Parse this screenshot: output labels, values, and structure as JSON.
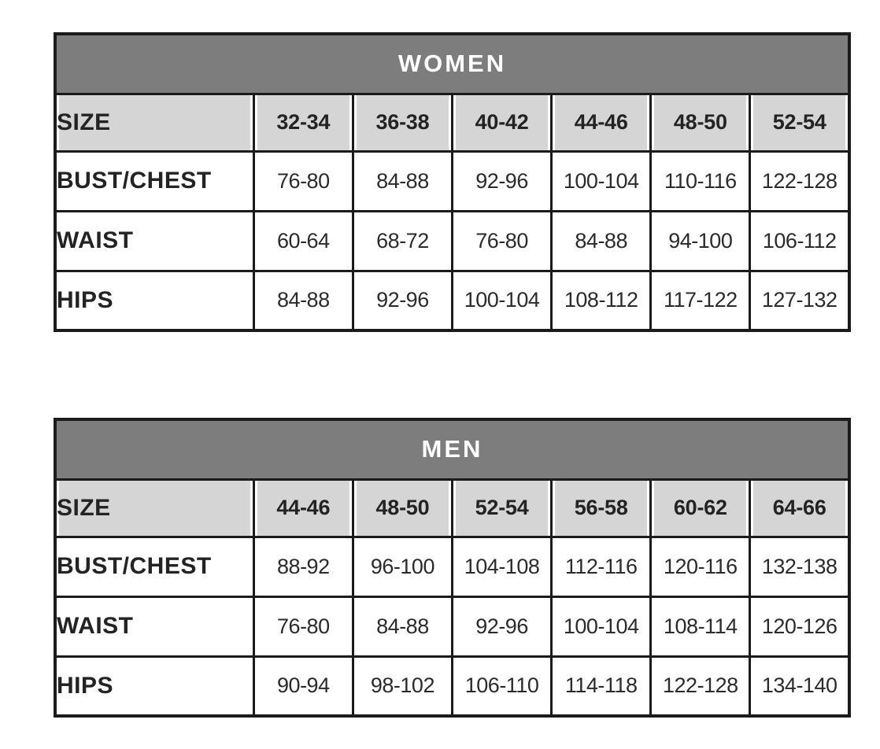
{
  "page": {
    "background": "#ffffff",
    "description": "Clothing size guide with two measurement tables"
  },
  "colors": {
    "title_band_bg": "#7d7d7d",
    "title_band_text": "#ffffff",
    "size_row_bg": "#d5d5d5",
    "data_cell_bg": "#ffffff",
    "border": "#1b1b1b",
    "text": "#232323"
  },
  "tables": [
    {
      "title": "WOMEN",
      "rows": [
        {
          "label": "SIZE",
          "header": true,
          "values": [
            "32-34",
            "36-38",
            "40-42",
            "44-46",
            "48-50",
            "52-54"
          ]
        },
        {
          "label": "BUST/CHEST",
          "header": false,
          "values": [
            "76-80",
            "84-88",
            "92-96",
            "100-104",
            "110-116",
            "122-128"
          ]
        },
        {
          "label": "WAIST",
          "header": false,
          "values": [
            "60-64",
            "68-72",
            "76-80",
            "84-88",
            "94-100",
            "106-112"
          ]
        },
        {
          "label": "HIPS",
          "header": false,
          "values": [
            "84-88",
            "92-96",
            "100-104",
            "108-112",
            "117-122",
            "127-132"
          ]
        }
      ]
    },
    {
      "title": "MEN",
      "rows": [
        {
          "label": "SIZE",
          "header": true,
          "values": [
            "44-46",
            "48-50",
            "52-54",
            "56-58",
            "60-62",
            "64-66"
          ]
        },
        {
          "label": "BUST/CHEST",
          "header": false,
          "values": [
            "88-92",
            "96-100",
            "104-108",
            "112-116",
            "120-116",
            "132-138"
          ]
        },
        {
          "label": "WAIST",
          "header": false,
          "values": [
            "76-80",
            "84-88",
            "92-96",
            "100-104",
            "108-114",
            "120-126"
          ]
        },
        {
          "label": "HIPS",
          "header": false,
          "values": [
            "90-94",
            "98-102",
            "106-110",
            "114-118",
            "122-128",
            "134-140"
          ]
        }
      ]
    }
  ]
}
